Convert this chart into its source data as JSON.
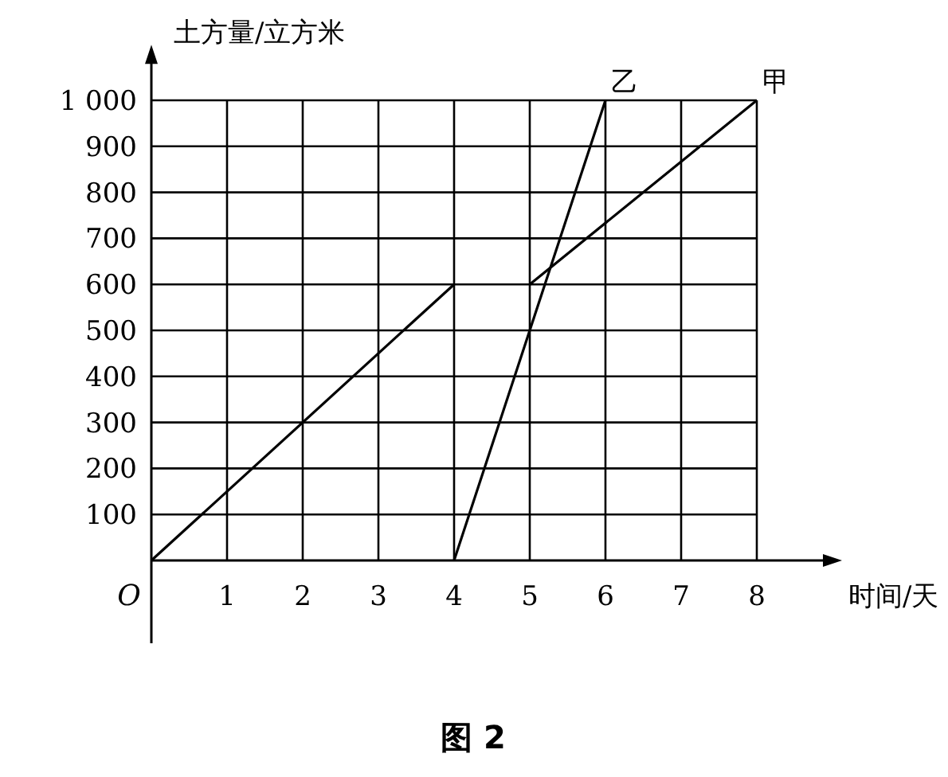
{
  "chart_data": {
    "type": "line",
    "title": "图 2",
    "xlabel": "时间/天",
    "ylabel": "土方量/立方米",
    "xlim": [
      0,
      9
    ],
    "ylim": [
      -180,
      1100
    ],
    "xticks": [
      1,
      2,
      3,
      4,
      5,
      6,
      7,
      8
    ],
    "annotations": [
      "O"
    ],
    "yticks": [
      100,
      200,
      300,
      400,
      500,
      600,
      700,
      800,
      900,
      {
        "value": 1000,
        "label": "1 000"
      }
    ],
    "grid": true,
    "marker": "none",
    "line_style": "solid",
    "series": [
      {
        "color": "#000000",
        "x": [
          0,
          4
        ],
        "values": [
          0,
          600
        ]
      },
      {
        "name": "甲",
        "color": "#000000",
        "x": [
          5,
          8
        ],
        "values": [
          600,
          1000
        ]
      },
      {
        "name": "乙",
        "color": "#000000",
        "x": [
          4,
          6
        ],
        "values": [
          0,
          1000
        ]
      }
    ]
  }
}
